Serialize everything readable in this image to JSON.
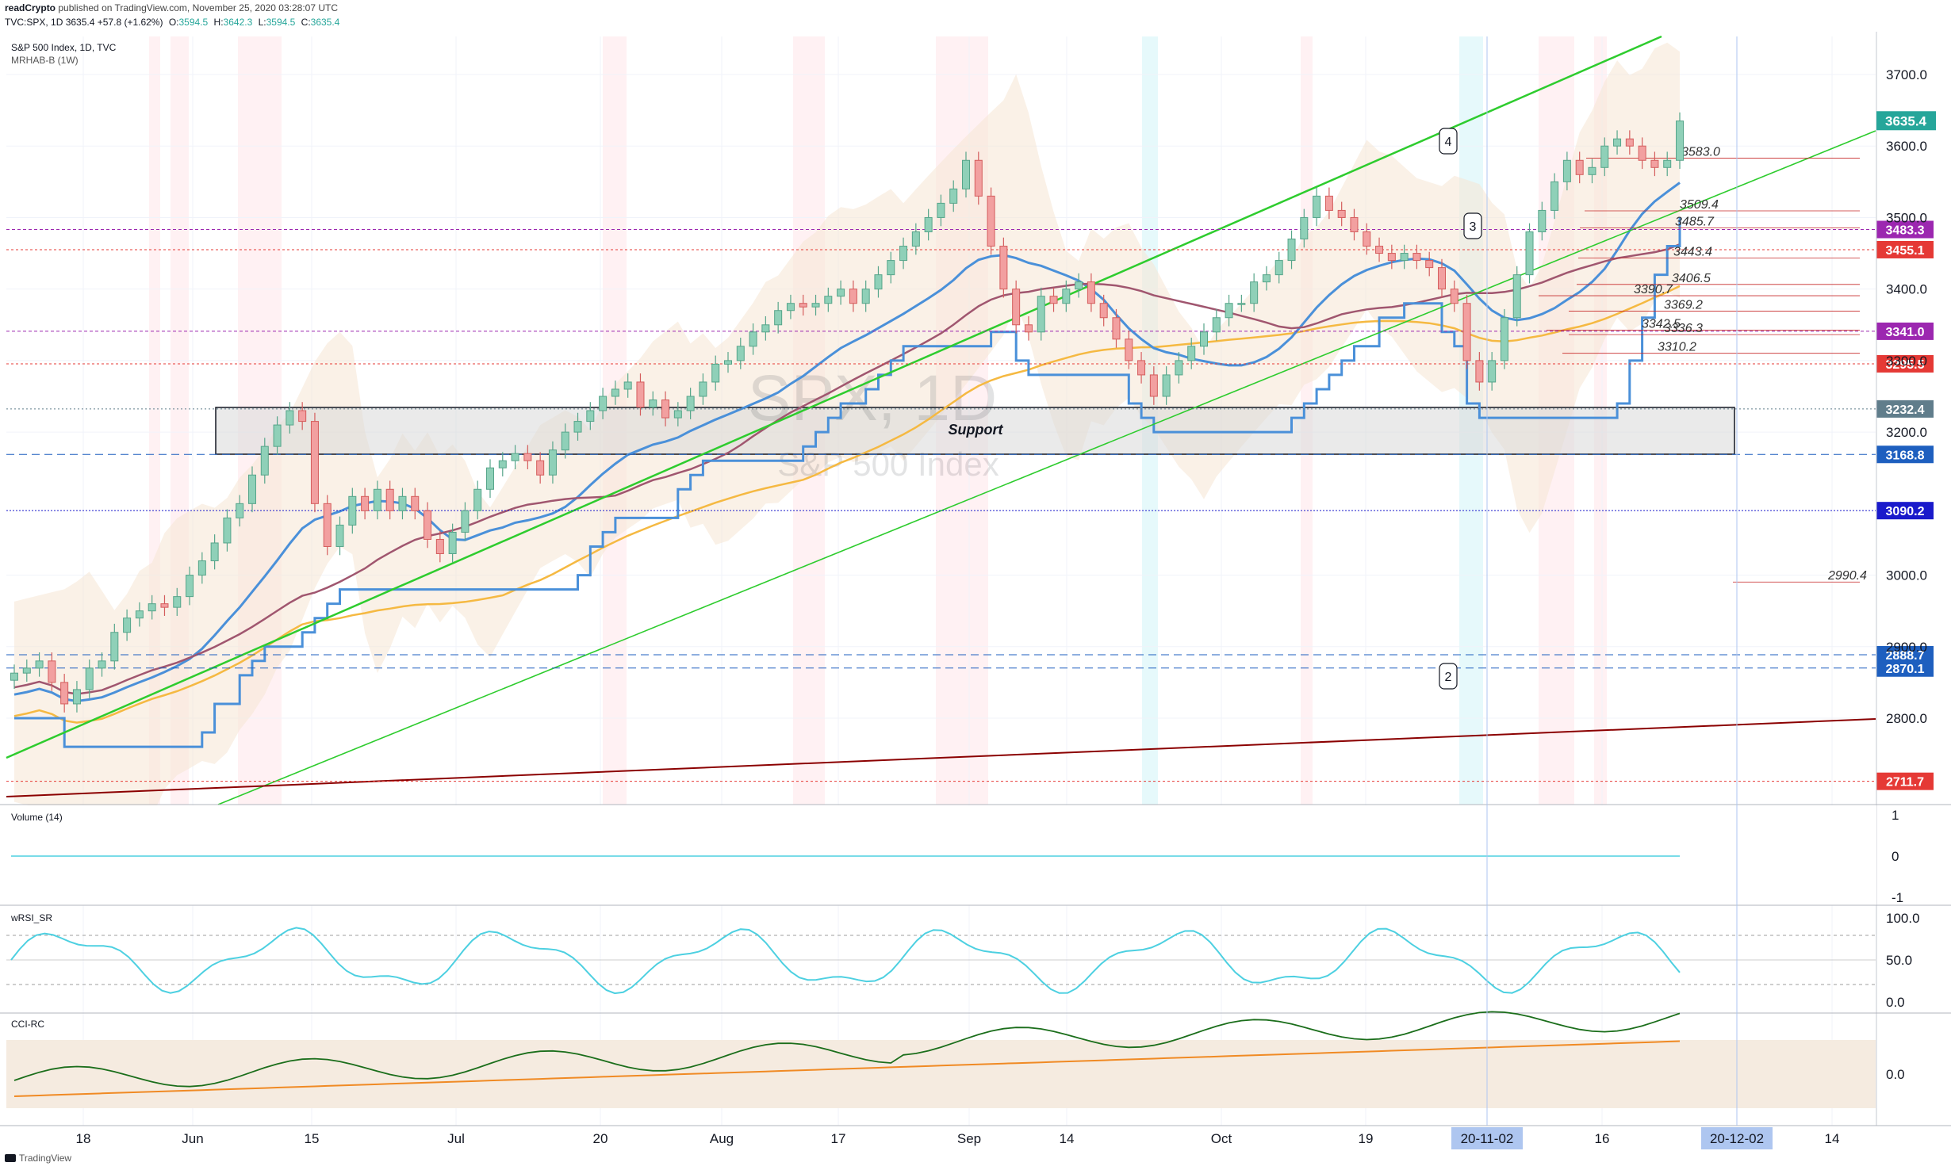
{
  "header": {
    "publisher_line": "published on TradingView.com, November 25, 2020 03:28:07 UTC",
    "publisher": "readCrypto",
    "symbol": "TVC:SPX, 1D",
    "price": "3635.4",
    "change": "+57.8 (+1.62%)",
    "open_label": "O:",
    "open": "3594.5",
    "high_label": "H:",
    "high": "3642.3",
    "low_label": "L:",
    "low": "3594.5",
    "close_label": "C:",
    "close": "3635.4"
  },
  "legend": {
    "title": "S&P 500 Index, 1D, TVC",
    "indicator": "MRHAB-B (1W)"
  },
  "watermark": {
    "big": "SPX, 1D",
    "small": "S&P 500 Index"
  },
  "footer": {
    "brand": "TradingView"
  },
  "chart_data": {
    "type": "candlestick",
    "yticks": [
      "3700.0",
      "3600.0",
      "3500.0",
      "3400.0",
      "3300.0",
      "3200.0",
      "3000.0",
      "2900.0",
      "2800.0"
    ],
    "xticks": [
      "18",
      "Jun",
      "15",
      "Jul",
      "20",
      "Aug",
      "17",
      "Sep",
      "14",
      "Oct",
      "19",
      "16",
      "14"
    ],
    "xticks_highlight": [
      "20-11-02",
      "20-12-02"
    ],
    "ylim": [
      2680,
      3760
    ],
    "current_price": {
      "label": "3635.4",
      "color": "#26a69a"
    },
    "level_badges": [
      {
        "label": "3483.3",
        "value": 3483.3,
        "color": "#9c27b0"
      },
      {
        "label": "3455.1",
        "value": 3455.1,
        "color": "#e53935"
      },
      {
        "label": "3341.0",
        "value": 3341.0,
        "color": "#9c27b0"
      },
      {
        "label": "3295.5",
        "value": 3295.5,
        "color": "#e53935"
      },
      {
        "label": "3232.4",
        "value": 3232.4,
        "color": "#607d8b"
      },
      {
        "label": "3168.8",
        "value": 3168.8,
        "color": "#1e5fbf"
      },
      {
        "label": "3090.2",
        "value": 3090.2,
        "color": "#1a1acb"
      },
      {
        "label": "2888.7",
        "value": 2888.7,
        "color": "#1e5fbf"
      },
      {
        "label": "2870.1",
        "value": 2870.1,
        "color": "#1e5fbf"
      },
      {
        "label": "2711.7",
        "value": 2711.7,
        "color": "#e53935"
      }
    ],
    "level_texts": [
      {
        "label": "3583.0",
        "value": 3583.0
      },
      {
        "label": "3509.4",
        "value": 3509.4
      },
      {
        "label": "3485.7",
        "value": 3485.7
      },
      {
        "label": "3443.4",
        "value": 3443.4
      },
      {
        "label": "3406.5",
        "value": 3406.5
      },
      {
        "label": "3390.7",
        "value": 3390.7
      },
      {
        "label": "3369.2",
        "value": 3369.2
      },
      {
        "label": "3342.5",
        "value": 3342.5
      },
      {
        "label": "3336.3",
        "value": 3336.3
      },
      {
        "label": "3310.2",
        "value": 3310.2
      },
      {
        "label": "2990.4",
        "value": 2990.4
      }
    ],
    "support_label": "Support",
    "callouts": [
      "4",
      "3",
      "2"
    ],
    "closes": [
      2863,
      2870,
      2880,
      2850,
      2820,
      2840,
      2870,
      2880,
      2920,
      2940,
      2950,
      2960,
      2955,
      2970,
      3000,
      3020,
      3045,
      3080,
      3100,
      3140,
      3180,
      3210,
      3230,
      3215,
      3100,
      3040,
      3070,
      3110,
      3090,
      3120,
      3090,
      3110,
      3090,
      3050,
      3030,
      3060,
      3090,
      3120,
      3150,
      3160,
      3170,
      3160,
      3140,
      3175,
      3200,
      3215,
      3230,
      3250,
      3260,
      3270,
      3235,
      3245,
      3220,
      3230,
      3250,
      3270,
      3295,
      3300,
      3320,
      3340,
      3350,
      3370,
      3380,
      3375,
      3380,
      3390,
      3400,
      3380,
      3400,
      3420,
      3440,
      3460,
      3480,
      3500,
      3520,
      3540,
      3580,
      3530,
      3460,
      3400,
      3350,
      3340,
      3390,
      3380,
      3400,
      3410,
      3380,
      3360,
      3330,
      3300,
      3280,
      3250,
      3280,
      3300,
      3320,
      3340,
      3360,
      3380,
      3380,
      3410,
      3420,
      3440,
      3470,
      3500,
      3530,
      3510,
      3500,
      3480,
      3460,
      3450,
      3440,
      3450,
      3440,
      3430,
      3400,
      3380,
      3300,
      3270,
      3300,
      3360,
      3420,
      3480,
      3510,
      3550,
      3580,
      3560,
      3570,
      3600,
      3610,
      3600,
      3580,
      3570,
      3580,
      3635
    ],
    "volume_axis": [
      "1",
      "0",
      "-1"
    ],
    "rsi_panel": {
      "name": "wRSI_SR",
      "ticks": [
        "100.0",
        "50.0",
        "0.0"
      ]
    },
    "cci_panel": {
      "name": "CCI-RC",
      "ticks": [
        "0.0"
      ]
    },
    "volume_panel": {
      "name": "Volume (14)"
    }
  }
}
